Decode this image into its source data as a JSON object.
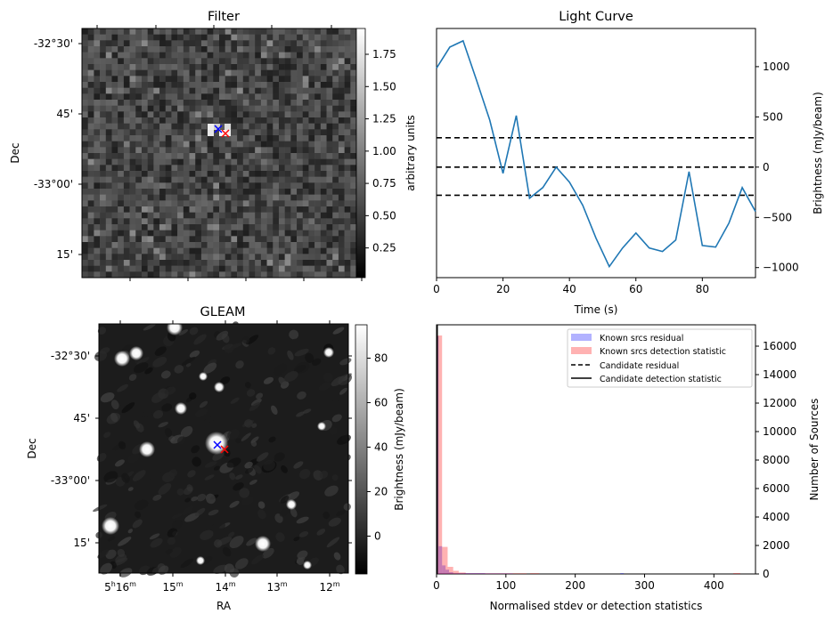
{
  "chart_data": [
    {
      "type": "heatmap",
      "title": "Filter",
      "xlabel": "",
      "ylabel": "Dec",
      "y_tick_labels": [
        "-32°30'",
        "45'",
        "-33°00'",
        "15'"
      ],
      "colorbar": {
        "label": "arbitrary units",
        "ticks": [
          "0.25",
          "0.50",
          "0.75",
          "1.00",
          "1.25",
          "1.50",
          "1.75"
        ],
        "range": [
          0.02,
          1.95
        ]
      },
      "markers": [
        {
          "name": "blue-cross",
          "color": "#0000ff"
        },
        {
          "name": "red-cross",
          "color": "#ff0000"
        }
      ]
    },
    {
      "type": "line",
      "title": "Light Curve",
      "xlabel": "Time (s)",
      "ylabel": "Brightness (mJy/beam)",
      "xlim": [
        0,
        96
      ],
      "ylim": [
        -1100,
        1380
      ],
      "x_ticks": [
        0,
        20,
        40,
        60,
        80
      ],
      "y_ticks": [
        -1000,
        -500,
        0,
        500,
        1000
      ],
      "y_tick_labels": [
        "−1000",
        "−500",
        "0",
        "500",
        "1000"
      ],
      "x": [
        0,
        4,
        8,
        12,
        16,
        20,
        24,
        28,
        32,
        36,
        40,
        44,
        48,
        52,
        56,
        60,
        64,
        68,
        72,
        76,
        80,
        84,
        88,
        92,
        96
      ],
      "series": [
        {
          "name": "light curve",
          "color": "#1f77b4",
          "values": [
            985,
            1195,
            1257,
            867,
            469,
            -62,
            513,
            -310,
            -204,
            0,
            -150,
            -380,
            -708,
            -990,
            -805,
            -655,
            -805,
            -840,
            -725,
            -45,
            -780,
            -796,
            -557,
            -204,
            -442
          ]
        }
      ],
      "hlines": [
        {
          "name": "upper threshold",
          "value": 292,
          "style": "dashed",
          "color": "#000000"
        },
        {
          "name": "mean",
          "value": 0,
          "style": "dashed",
          "color": "#000000"
        },
        {
          "name": "lower threshold",
          "value": -280,
          "style": "dashed",
          "color": "#000000"
        }
      ],
      "grid": false
    },
    {
      "type": "heatmap",
      "title": "GLEAM",
      "xlabel": "RA",
      "ylabel": "Dec",
      "x_tick_labels": [
        {
          "h": "5",
          "m": "16"
        },
        {
          "h": "",
          "m": "15"
        },
        {
          "h": "",
          "m": "14"
        },
        {
          "h": "",
          "m": "13"
        },
        {
          "h": "",
          "m": "12"
        }
      ],
      "y_tick_labels": [
        "-32°30'",
        "45'",
        "-33°00'",
        "15'"
      ],
      "colorbar": {
        "label": "Brightness (mJy/beam)",
        "ticks": [
          "0",
          "20",
          "40",
          "60",
          "80"
        ],
        "range": [
          -17,
          95
        ]
      },
      "markers": [
        {
          "name": "blue-cross",
          "color": "#0000ff"
        },
        {
          "name": "red-cross",
          "color": "#ff0000"
        }
      ]
    },
    {
      "type": "bar",
      "title": "",
      "xlabel": "Normalised stdev or detection statistics",
      "ylabel": "Number of Sources",
      "xlim": [
        0,
        460
      ],
      "ylim": [
        0,
        17500
      ],
      "x_ticks": [
        0,
        100,
        200,
        300,
        400
      ],
      "y_ticks": [
        0,
        2000,
        4000,
        6000,
        8000,
        10000,
        12000,
        14000,
        16000
      ],
      "legend_position": "top-right",
      "legend": [
        {
          "label": "Known srcs residual",
          "kind": "patch",
          "color": "#0000ff",
          "alpha": 0.3
        },
        {
          "label": "Known srcs detection statistic",
          "kind": "patch",
          "color": "#ff0000",
          "alpha": 0.3
        },
        {
          "label": "Candidate residual",
          "kind": "dashed-line",
          "color": "#000000"
        },
        {
          "label": "Candidate detection statistic",
          "kind": "solid-line",
          "color": "#000000"
        }
      ],
      "series": [
        {
          "name": "Known srcs residual",
          "color": "#0000ff",
          "bins": [
            [
              0,
              3,
              16700
            ],
            [
              3,
              8,
              1950
            ],
            [
              8,
              13,
              600
            ],
            [
              13,
              18,
              300
            ],
            [
              18,
              24,
              120
            ],
            [
              24,
              40,
              50
            ],
            [
              40,
              70,
              60
            ],
            [
              70,
              110,
              40
            ],
            [
              265,
              270,
              60
            ]
          ]
        },
        {
          "name": "Known srcs detection statistic",
          "color": "#ff0000",
          "bins": [
            [
              0,
              8,
              16750
            ],
            [
              8,
              16,
              1900
            ],
            [
              16,
              24,
              500
            ],
            [
              24,
              32,
              220
            ],
            [
              32,
              42,
              100
            ],
            [
              42,
              130,
              40
            ],
            [
              135,
              148,
              50
            ],
            [
              428,
              438,
              60
            ]
          ]
        }
      ]
    }
  ]
}
